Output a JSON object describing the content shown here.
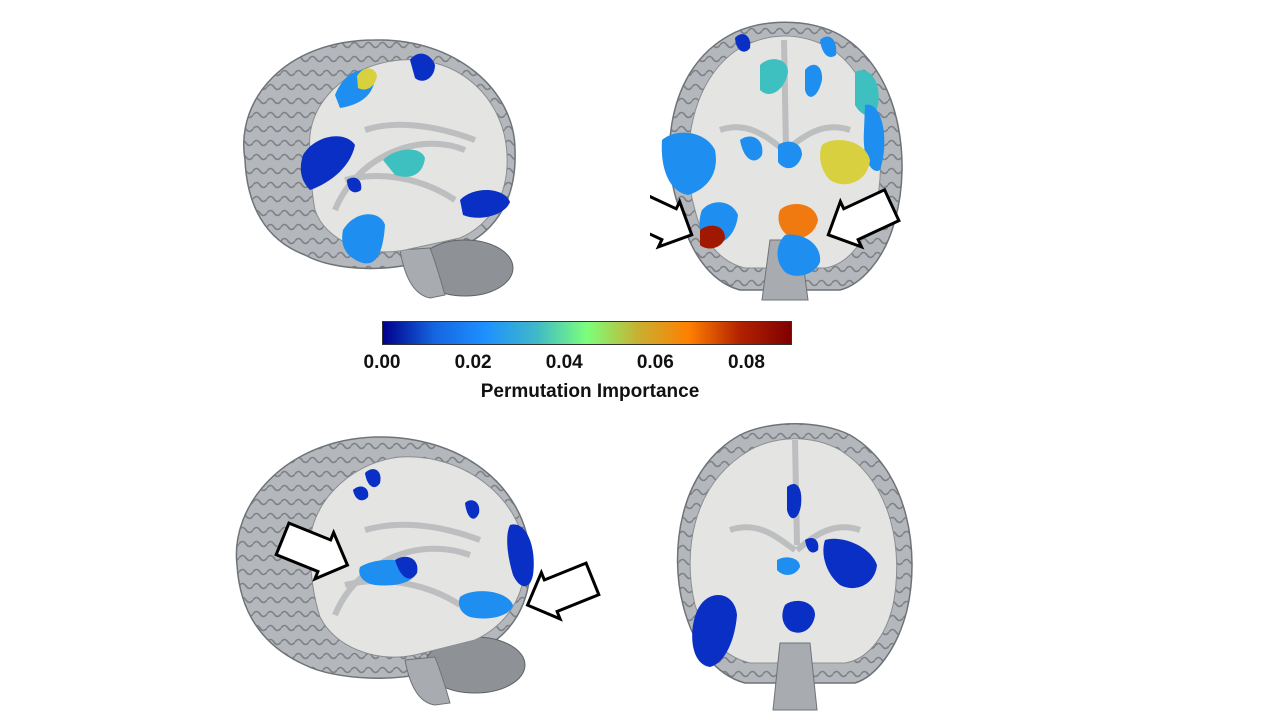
{
  "colorbar": {
    "title": "Permutation Importance",
    "min": 0.0,
    "max": 0.09,
    "ticks": [
      "0.00",
      "0.02",
      "0.04",
      "0.06",
      "0.08"
    ],
    "tick_values": [
      0.0,
      0.02,
      0.04,
      0.06,
      0.08
    ],
    "colormap": "jet",
    "stops": [
      "#00008b",
      "#1565e0",
      "#1e90ff",
      "#3fb8c8",
      "#7cff7c",
      "#c8b030",
      "#ff7f00",
      "#b22200",
      "#800000"
    ]
  },
  "panels": {
    "top_left": {
      "view": "sagittal",
      "arrows": 0
    },
    "top_right": {
      "view": "coronal",
      "arrows": 2
    },
    "bottom_left": {
      "view": "sagittal",
      "arrows": 2
    },
    "bottom_right": {
      "view": "coronal",
      "arrows": 0
    }
  },
  "colors": {
    "brain_outer": "#b4b8bd",
    "brain_slice": "#e4e4e2",
    "cerebellum": "#8e9196",
    "blob_dark_blue": "#0a2fc4",
    "blob_blue": "#1e8ff0",
    "blob_teal": "#3fc0c0",
    "blob_yellow": "#d9d040",
    "blob_orange": "#f07a10",
    "blob_red": "#a01800"
  }
}
